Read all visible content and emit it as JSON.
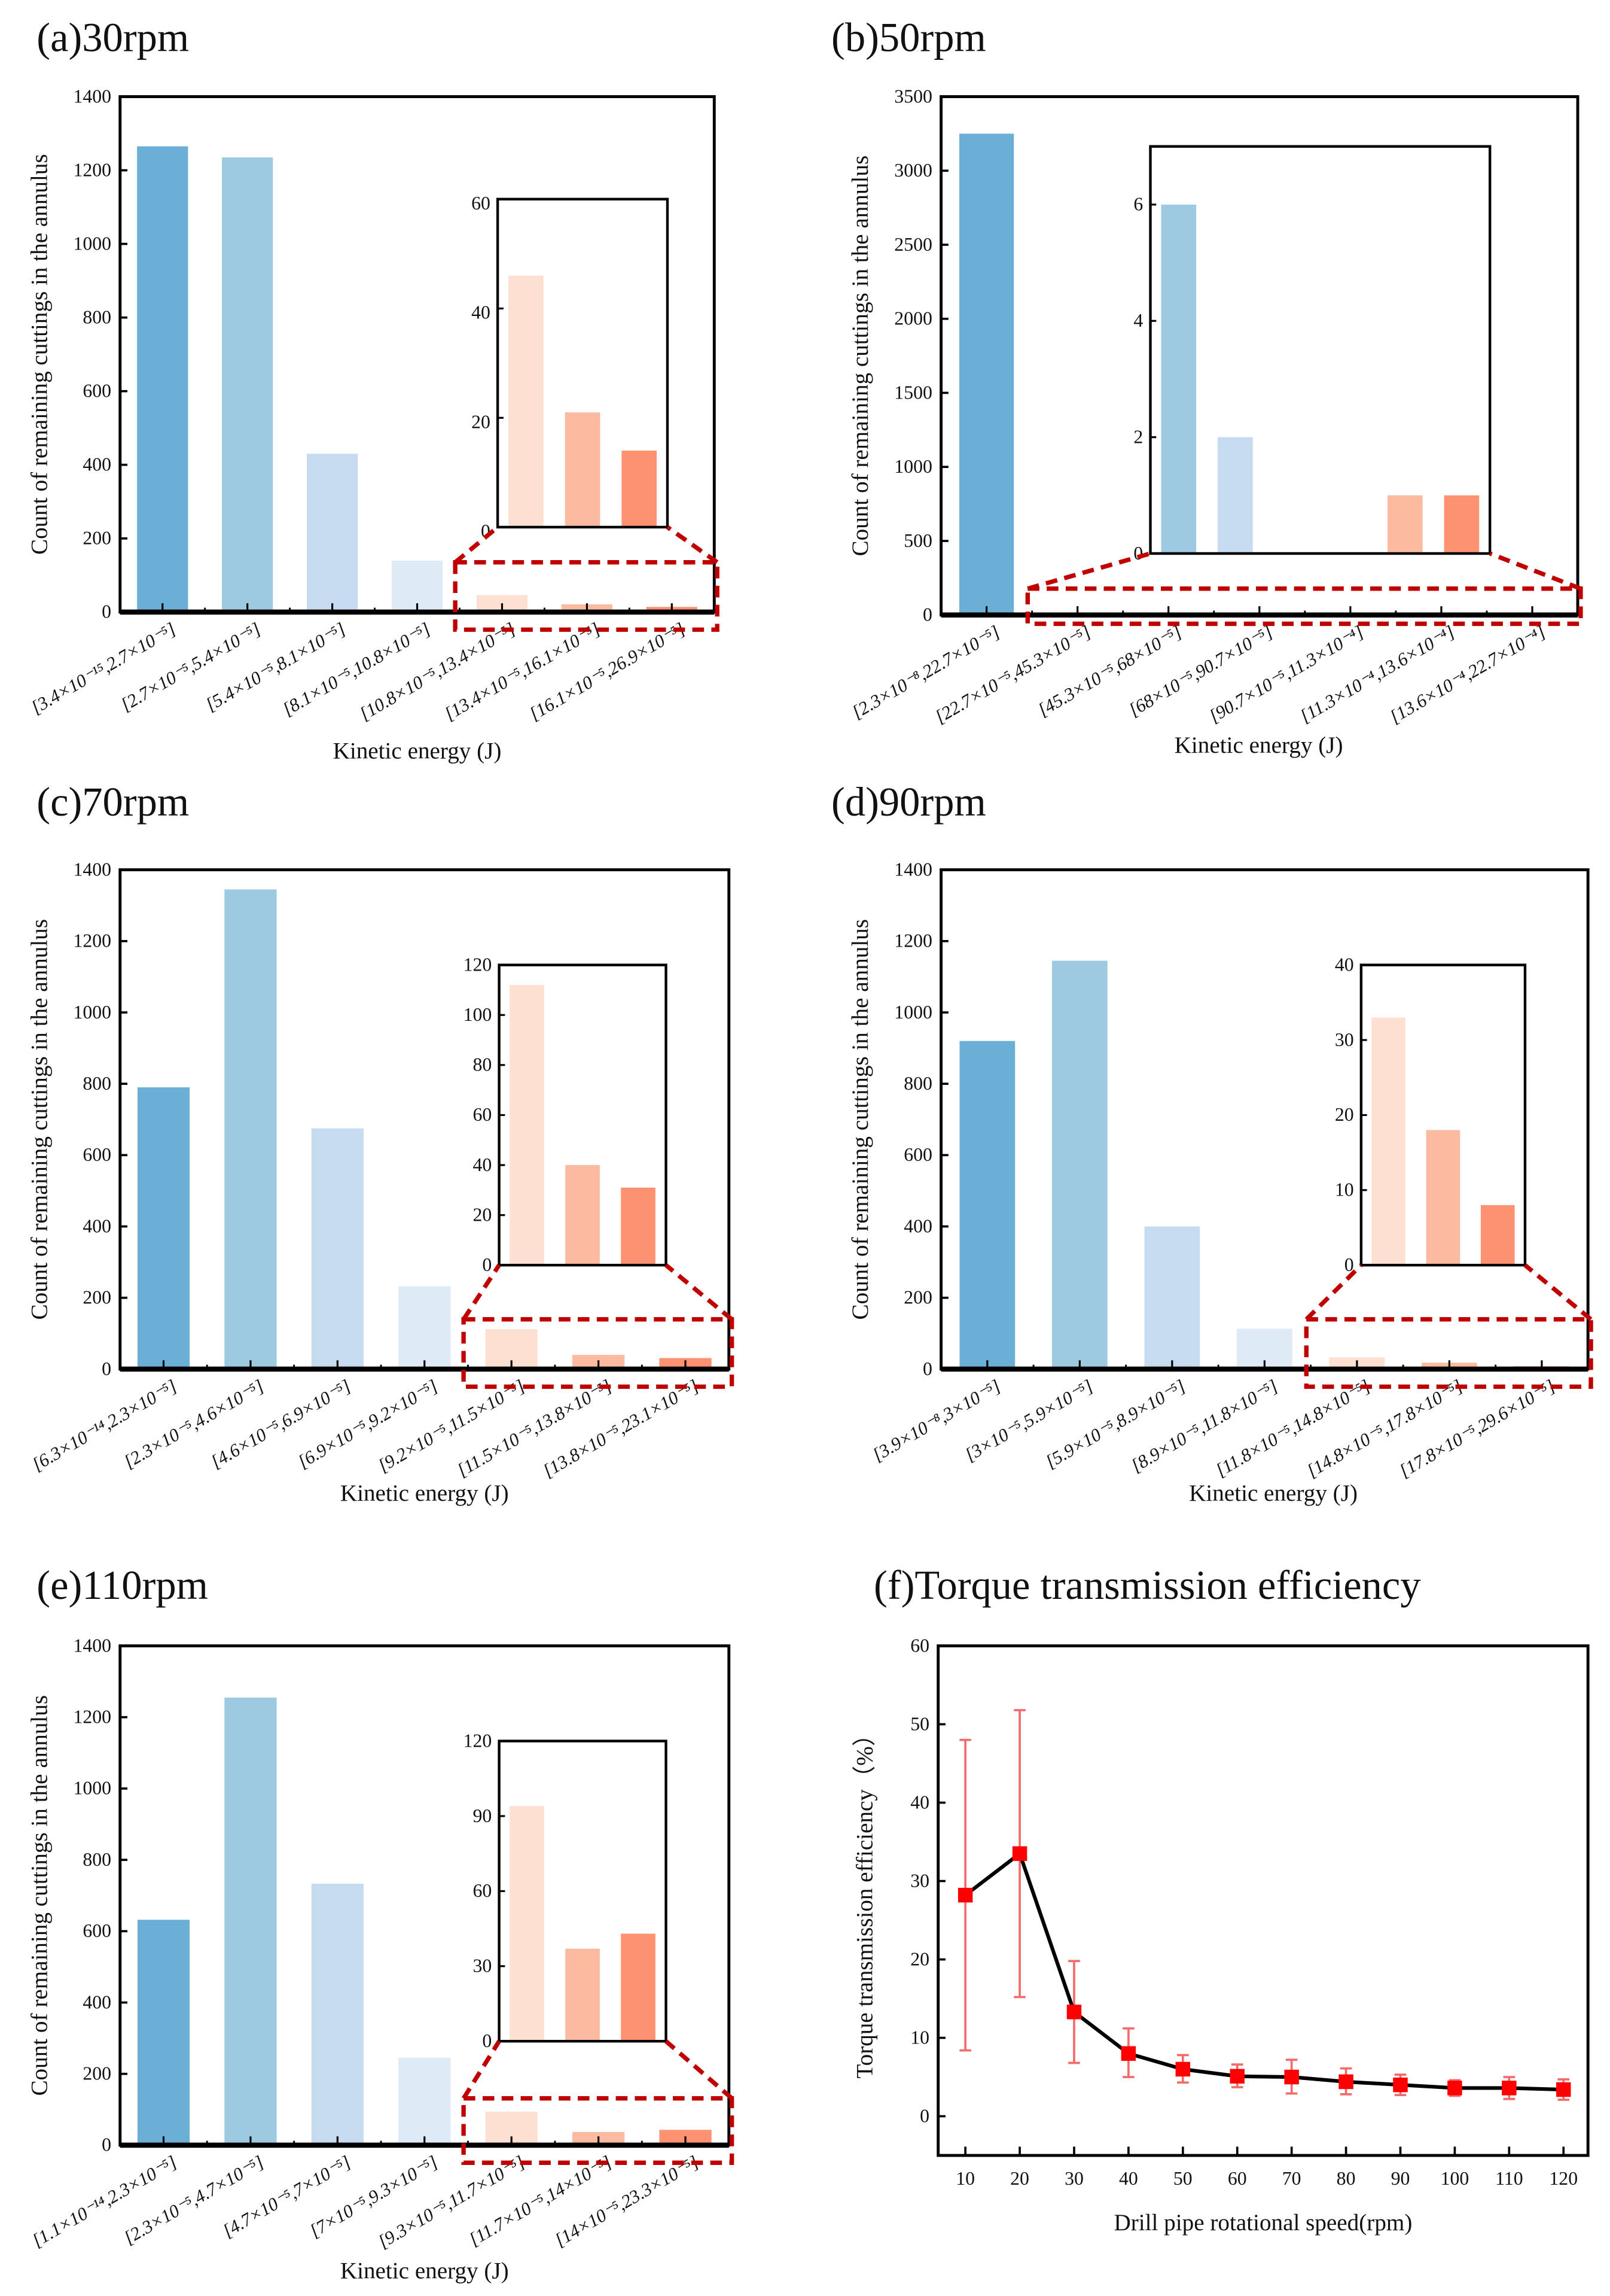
{
  "colors": {
    "bars": [
      "#6baed6",
      "#9ecae1",
      "#c6dbef",
      "#deebf7",
      "#fde0d2",
      "#fcbba1",
      "#fc9272"
    ],
    "zoom_box": "#c00000",
    "line": "#000000",
    "marker": "#ff0000",
    "errorbar": "#f26b6b"
  },
  "chart_data": [
    {
      "type": "bar",
      "title": "(a)30rpm",
      "xlabel": "Kinetic energy (J)",
      "ylabel": "Count of remaining cuttings in the annulus",
      "categories": [
        "[3.4×10⁻¹⁵,2.7×10⁻⁵]",
        "[2.7×10⁻⁵,5.4×10⁻⁵]",
        "[5.4×10⁻⁵,8.1×10⁻⁵]",
        "[8.1×10⁻⁵,10.8×10⁻⁵]",
        "[10.8×10⁻⁵,13.4×10⁻⁵]",
        "[13.4×10⁻⁵,16.1×10⁻⁵]",
        "[16.1×10⁻⁵,26.9×10⁻⁵]"
      ],
      "values": [
        1265,
        1235,
        430,
        140,
        46,
        21,
        14
      ],
      "ylim": [
        0,
        1400
      ],
      "yticks": [
        "0",
        "200",
        "400",
        "600",
        "800",
        "1000",
        "1200",
        "1400"
      ],
      "inset": {
        "from_index": 4,
        "ylim": [
          0,
          60
        ],
        "yticks": [
          "0",
          "20",
          "40",
          "60"
        ]
      }
    },
    {
      "type": "bar",
      "title": "(b)50rpm",
      "xlabel": "Kinetic energy (J)",
      "ylabel": "Count of remaining cuttings in the annulus",
      "categories": [
        "[2.3×10⁻⁸,22.7×10⁻⁵]",
        "[22.7×10⁻⁵,45.3×10⁻⁵]",
        "[45.3×10⁻⁵,68×10⁻⁵]",
        "[68×10⁻⁵,90.7×10⁻⁵]",
        "[90.7×10⁻⁵,11.3×10⁻⁴]",
        "[11.3×10⁻⁴,13.6×10⁻⁴]",
        "[13.6×10⁻⁴,22.7×10⁻⁴]"
      ],
      "values": [
        3250,
        6,
        2,
        0,
        0,
        1,
        1
      ],
      "ylim": [
        0,
        3500
      ],
      "yticks": [
        "0",
        "500",
        "1000",
        "1500",
        "2000",
        "2500",
        "3000",
        "3500"
      ],
      "inset": {
        "from_index": 1,
        "ylim": [
          0,
          7
        ],
        "yticks": [
          "0",
          "2",
          "4",
          "6"
        ]
      }
    },
    {
      "type": "bar",
      "title": "(c)70rpm",
      "xlabel": "Kinetic energy (J)",
      "ylabel": "Count of remaining cuttings in the annulus",
      "categories": [
        "[6.3×10⁻¹⁴,2.3×10⁻⁵]",
        "[2.3×10⁻⁵,4.6×10⁻⁵]",
        "[4.6×10⁻⁵,6.9×10⁻⁵]",
        "[6.9×10⁻⁵,9.2×10⁻⁵]",
        "[9.2×10⁻⁵,11.5×10⁻⁵]",
        "[11.5×10⁻⁵,13.8×10⁻⁵]",
        "[13.8×10⁻⁵,23.1×10⁻⁵]"
      ],
      "values": [
        790,
        1345,
        675,
        232,
        112,
        40,
        31
      ],
      "ylim": [
        0,
        1400
      ],
      "yticks": [
        "0",
        "200",
        "400",
        "600",
        "800",
        "1000",
        "1200",
        "1400"
      ],
      "inset": {
        "from_index": 4,
        "ylim": [
          0,
          120
        ],
        "yticks": [
          "0",
          "20",
          "40",
          "60",
          "80",
          "100",
          "120"
        ]
      }
    },
    {
      "type": "bar",
      "title": "(d)90rpm",
      "xlabel": "Kinetic energy (J)",
      "ylabel": "Count of remaining cuttings in the annulus",
      "categories": [
        "[3.9×10⁻⁸,3×10⁻⁵]",
        "[3×10⁻⁵,5.9×10⁻⁵]",
        "[5.9×10⁻⁵,8.9×10⁻⁵]",
        "[8.9×10⁻⁵,11.8×10⁻⁵]",
        "[11.8×10⁻⁵,14.8×10⁻⁵]",
        "[14.8×10⁻⁵,17.8×10⁻⁵]",
        "[17.8×10⁻⁵,29.6×10⁻⁵]"
      ],
      "values": [
        920,
        1145,
        400,
        113,
        33,
        18,
        8
      ],
      "ylim": [
        0,
        1400
      ],
      "yticks": [
        "0",
        "200",
        "400",
        "600",
        "800",
        "1000",
        "1200",
        "1400"
      ],
      "inset": {
        "from_index": 4,
        "ylim": [
          0,
          40
        ],
        "yticks": [
          "0",
          "10",
          "20",
          "30",
          "40"
        ]
      }
    },
    {
      "type": "bar",
      "title": "(e)110rpm",
      "xlabel": "Kinetic energy (J)",
      "ylabel": "Count of remaining cuttings in the annulus",
      "categories": [
        "[1.1×10⁻¹⁴,2.3×10⁻⁵]",
        "[2.3×10⁻⁵,4.7×10⁻⁵]",
        "[4.7×10⁻⁵,7×10⁻⁵]",
        "[7×10⁻⁵,9.3×10⁻⁵]",
        "[9.3×10⁻⁵,11.7×10⁻⁵]",
        "[11.7×10⁻⁵,14×10⁻⁵]",
        "[14×10⁻⁵,23.3×10⁻⁵]"
      ],
      "values": [
        632,
        1255,
        733,
        245,
        94,
        37,
        43
      ],
      "ylim": [
        0,
        1400
      ],
      "yticks": [
        "0",
        "200",
        "400",
        "600",
        "800",
        "1000",
        "1200",
        "1400"
      ],
      "inset": {
        "from_index": 4,
        "ylim": [
          0,
          120
        ],
        "yticks": [
          "0",
          "30",
          "60",
          "90",
          "120"
        ]
      }
    },
    {
      "type": "line",
      "title": "(f)Torque transmission efficiency",
      "xlabel": "Drill pipe rotational speed(rpm)",
      "ylabel": "Torque transmission efficiency（%）",
      "x": [
        10,
        20,
        30,
        40,
        50,
        60,
        70,
        80,
        90,
        100,
        110,
        120
      ],
      "xticks": [
        "10",
        "20",
        "30",
        "40",
        "50",
        "60",
        "70",
        "80",
        "90",
        "100",
        "110",
        "120"
      ],
      "y": [
        28.2,
        33.5,
        13.3,
        8.0,
        6.0,
        5.1,
        5.0,
        4.4,
        4.0,
        3.6,
        3.6,
        3.4
      ],
      "y_err_low": [
        8.4,
        15.2,
        6.8,
        5.0,
        4.3,
        3.7,
        2.9,
        2.8,
        2.7,
        2.6,
        2.2,
        2.1
      ],
      "y_err_high": [
        48.0,
        51.8,
        19.8,
        11.2,
        7.8,
        6.6,
        7.2,
        6.1,
        5.3,
        4.6,
        5.0,
        4.7
      ],
      "xlim": [
        5,
        124.5
      ],
      "ylim": [
        -5,
        60
      ],
      "yticks": [
        "0",
        "10",
        "20",
        "30",
        "40",
        "50",
        "60"
      ]
    }
  ]
}
